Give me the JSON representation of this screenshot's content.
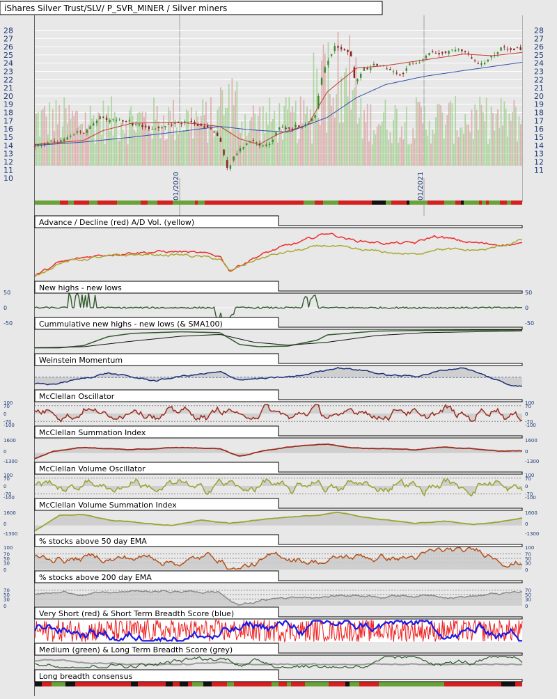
{
  "header": {
    "title": "iShares Silver Trust/SLV/ P_SVR_MINER / Silver miners"
  },
  "colors": {
    "background": "#e8e8e8",
    "grid": "#ffffff",
    "axis_text": "#1d3a78",
    "up_candle": "#3a8a2a",
    "down_candle": "#8a1e1e",
    "sma_short": "#c0392b",
    "sma_long": "#2f4fb0",
    "volume_up": "#9ccf8a",
    "volume_down": "#d9a0a0",
    "ad_line": "#ee2a2a",
    "ad_volume": "#a8a830",
    "new_highs": "#2f5a2a",
    "weinstein": "#1c2f7a",
    "mcclellan": "#9a2b1e",
    "mcclellan_volume": "#9aa330",
    "ema50": "#b4501b",
    "ema200": "#8a8a8a",
    "very_short": "#ee1e1e",
    "short_term": "#1a1ae8",
    "medium": "#2e5a2a",
    "long_term": "#9a9a9a",
    "band_red": "#d42020",
    "band_green": "#6aa23a",
    "band_black": "#111111"
  },
  "chart_data": [
    {
      "type": "candlestick",
      "title": "iShares Silver Trust/SLV/ P_SVR_MINER / Silver miners",
      "y_ticks": [
        28,
        27,
        26,
        25,
        24,
        23,
        22,
        21,
        20,
        19,
        18,
        17,
        16,
        15,
        14,
        13,
        12,
        11,
        10
      ],
      "ylim": [
        10,
        28.8
      ],
      "x_tick_labels": [
        "01/2020",
        "01/2021"
      ],
      "price_anchors": [
        [
          0,
          14.0
        ],
        [
          0.03,
          14.1
        ],
        [
          0.06,
          14.6
        ],
        [
          0.09,
          15.2
        ],
        [
          0.12,
          16.5
        ],
        [
          0.14,
          17.4
        ],
        [
          0.16,
          17.0
        ],
        [
          0.19,
          16.4
        ],
        [
          0.22,
          16.8
        ],
        [
          0.24,
          16.1
        ],
        [
          0.27,
          16.6
        ],
        [
          0.3,
          16.9
        ],
        [
          0.33,
          16.7
        ],
        [
          0.36,
          16.5
        ],
        [
          0.38,
          15.2
        ],
        [
          0.4,
          11.1
        ],
        [
          0.42,
          13.5
        ],
        [
          0.44,
          14.2
        ],
        [
          0.46,
          14.4
        ],
        [
          0.48,
          14.3
        ],
        [
          0.5,
          16.1
        ],
        [
          0.53,
          16.3
        ],
        [
          0.56,
          16.7
        ],
        [
          0.58,
          17.5
        ],
        [
          0.59,
          22.0
        ],
        [
          0.6,
          23.9
        ],
        [
          0.62,
          26.0
        ],
        [
          0.65,
          25.4
        ],
        [
          0.66,
          22.0
        ],
        [
          0.68,
          23.2
        ],
        [
          0.7,
          23.6
        ],
        [
          0.72,
          23.5
        ],
        [
          0.74,
          22.7
        ],
        [
          0.76,
          23.0
        ],
        [
          0.78,
          24.2
        ],
        [
          0.8,
          24.8
        ],
        [
          0.82,
          25.6
        ],
        [
          0.84,
          25.4
        ],
        [
          0.86,
          25.7
        ],
        [
          0.88,
          25.0
        ],
        [
          0.9,
          24.4
        ],
        [
          0.92,
          23.9
        ],
        [
          0.94,
          24.5
        ],
        [
          0.96,
          25.6
        ],
        [
          0.98,
          25.8
        ],
        [
          1.0,
          25.6
        ]
      ],
      "sma_short_anchors": [
        [
          0,
          14.1
        ],
        [
          0.1,
          14.6
        ],
        [
          0.14,
          15.8
        ],
        [
          0.2,
          16.7
        ],
        [
          0.3,
          16.8
        ],
        [
          0.38,
          16.3
        ],
        [
          0.42,
          14.8
        ],
        [
          0.46,
          14.1
        ],
        [
          0.5,
          15.4
        ],
        [
          0.56,
          16.5
        ],
        [
          0.6,
          20.5
        ],
        [
          0.66,
          23.4
        ],
        [
          0.72,
          23.7
        ],
        [
          0.8,
          24.4
        ],
        [
          0.88,
          25.1
        ],
        [
          0.94,
          24.9
        ],
        [
          1.0,
          25.3
        ]
      ],
      "sma_long_anchors": [
        [
          0,
          14.0
        ],
        [
          0.1,
          14.4
        ],
        [
          0.2,
          15.0
        ],
        [
          0.3,
          15.7
        ],
        [
          0.38,
          16.3
        ],
        [
          0.44,
          15.9
        ],
        [
          0.52,
          15.6
        ],
        [
          0.6,
          17.4
        ],
        [
          0.66,
          19.8
        ],
        [
          0.72,
          21.4
        ],
        [
          0.8,
          22.4
        ],
        [
          0.88,
          23.1
        ],
        [
          0.94,
          23.6
        ],
        [
          1.0,
          24.1
        ]
      ]
    },
    {
      "type": "line",
      "title": "Advance / Decline (red) A/D Vol. (yellow)",
      "series": [
        {
          "name": "Advance / Decline",
          "color_key": "ad_line",
          "anchors": [
            [
              0,
              0.1
            ],
            [
              0.05,
              0.35
            ],
            [
              0.12,
              0.48
            ],
            [
              0.2,
              0.55
            ],
            [
              0.3,
              0.56
            ],
            [
              0.38,
              0.48
            ],
            [
              0.4,
              0.2
            ],
            [
              0.45,
              0.45
            ],
            [
              0.5,
              0.62
            ],
            [
              0.55,
              0.75
            ],
            [
              0.6,
              0.92
            ],
            [
              0.65,
              0.78
            ],
            [
              0.72,
              0.72
            ],
            [
              0.78,
              0.72
            ],
            [
              0.82,
              0.85
            ],
            [
              0.88,
              0.75
            ],
            [
              0.93,
              0.7
            ],
            [
              1.0,
              0.7
            ]
          ]
        },
        {
          "name": "A/D Vol.",
          "color_key": "ad_volume",
          "anchors": [
            [
              0,
              0.1
            ],
            [
              0.05,
              0.35
            ],
            [
              0.12,
              0.44
            ],
            [
              0.2,
              0.5
            ],
            [
              0.3,
              0.5
            ],
            [
              0.38,
              0.42
            ],
            [
              0.4,
              0.18
            ],
            [
              0.45,
              0.4
            ],
            [
              0.5,
              0.52
            ],
            [
              0.55,
              0.6
            ],
            [
              0.6,
              0.68
            ],
            [
              0.65,
              0.6
            ],
            [
              0.72,
              0.55
            ],
            [
              0.78,
              0.5
            ],
            [
              0.82,
              0.62
            ],
            [
              0.88,
              0.58
            ],
            [
              0.93,
              0.6
            ],
            [
              1.0,
              0.78
            ]
          ]
        }
      ]
    },
    {
      "type": "line",
      "title": "New highs - new lows",
      "y_ticks": [
        50,
        0,
        -50
      ],
      "series": [
        {
          "name": "New highs - new lows",
          "color_key": "new_highs"
        }
      ]
    },
    {
      "type": "line",
      "title": "Cummulative new highs - new lows (& SMA100)",
      "series": [
        {
          "name": "Cummulative new highs - new lows",
          "color_key": "new_highs",
          "anchors": [
            [
              0,
              0.2
            ],
            [
              0.05,
              0.2
            ],
            [
              0.1,
              0.3
            ],
            [
              0.15,
              0.7
            ],
            [
              0.2,
              0.85
            ],
            [
              0.3,
              0.92
            ],
            [
              0.38,
              0.88
            ],
            [
              0.42,
              0.35
            ],
            [
              0.46,
              0.25
            ],
            [
              0.52,
              0.28
            ],
            [
              0.58,
              0.55
            ],
            [
              0.6,
              0.78
            ],
            [
              0.7,
              0.95
            ],
            [
              0.8,
              0.98
            ],
            [
              1.0,
              1.0
            ]
          ]
        },
        {
          "name": "SMA100",
          "color_key": "band_black",
          "anchors": [
            [
              0,
              0.2
            ],
            [
              0.1,
              0.25
            ],
            [
              0.2,
              0.5
            ],
            [
              0.3,
              0.72
            ],
            [
              0.38,
              0.8
            ],
            [
              0.45,
              0.45
            ],
            [
              0.52,
              0.32
            ],
            [
              0.6,
              0.45
            ],
            [
              0.7,
              0.75
            ],
            [
              0.8,
              0.88
            ],
            [
              1.0,
              0.96
            ]
          ]
        }
      ]
    },
    {
      "type": "line",
      "title": "Weinstein Momentum",
      "series": [
        {
          "name": "Weinstein Momentum",
          "color_key": "weinstein",
          "anchors": [
            [
              0.04,
              0.2
            ],
            [
              0.1,
              0.45
            ],
            [
              0.15,
              0.7
            ],
            [
              0.2,
              0.5
            ],
            [
              0.25,
              0.35
            ],
            [
              0.3,
              0.55
            ],
            [
              0.38,
              0.72
            ],
            [
              0.42,
              0.4
            ],
            [
              0.48,
              0.45
            ],
            [
              0.54,
              0.55
            ],
            [
              0.58,
              0.75
            ],
            [
              0.62,
              0.95
            ],
            [
              0.68,
              0.8
            ],
            [
              0.72,
              0.6
            ],
            [
              0.78,
              0.55
            ],
            [
              0.84,
              0.82
            ],
            [
              0.88,
              0.95
            ],
            [
              0.92,
              0.6
            ],
            [
              0.97,
              0.2
            ],
            [
              1.0,
              0.1
            ]
          ]
        }
      ]
    },
    {
      "type": "line",
      "title": "McClellan Oscillator",
      "y_ticks": [
        100,
        70,
        0,
        -70,
        -100
      ],
      "series": [
        {
          "name": "McClellan Oscillator",
          "color_key": "mcclellan"
        }
      ]
    },
    {
      "type": "line",
      "title": "McClellan Summation Index",
      "y_ticks": [
        1600,
        0,
        -1300
      ],
      "series": [
        {
          "name": "McClellan Summation Index",
          "color_key": "mcclellan",
          "anchors": [
            [
              0,
              0.1
            ],
            [
              0.04,
              0.45
            ],
            [
              0.1,
              0.6
            ],
            [
              0.2,
              0.5
            ],
            [
              0.3,
              0.6
            ],
            [
              0.38,
              0.55
            ],
            [
              0.42,
              0.2
            ],
            [
              0.48,
              0.5
            ],
            [
              0.55,
              0.7
            ],
            [
              0.6,
              0.75
            ],
            [
              0.66,
              0.58
            ],
            [
              0.72,
              0.55
            ],
            [
              0.78,
              0.5
            ],
            [
              0.84,
              0.62
            ],
            [
              0.9,
              0.55
            ],
            [
              0.95,
              0.45
            ],
            [
              1.0,
              0.45
            ]
          ]
        }
      ]
    },
    {
      "type": "line",
      "title": "McClellan Volume Oscillator",
      "y_ticks": [
        100,
        70,
        0,
        -70,
        -100
      ],
      "series": [
        {
          "name": "McClellan Volume Oscillator",
          "color_key": "mcclellan_volume"
        }
      ]
    },
    {
      "type": "line",
      "title": "McClellan Volume Summation Index",
      "y_ticks": [
        1600,
        0,
        -1300
      ],
      "series": [
        {
          "name": "McClellan Volume Summation Index",
          "color_key": "mcclellan_volume",
          "anchors": [
            [
              0,
              0.1
            ],
            [
              0.05,
              0.8
            ],
            [
              0.1,
              0.85
            ],
            [
              0.15,
              0.6
            ],
            [
              0.2,
              0.5
            ],
            [
              0.28,
              0.35
            ],
            [
              0.34,
              0.6
            ],
            [
              0.4,
              0.45
            ],
            [
              0.46,
              0.6
            ],
            [
              0.52,
              0.72
            ],
            [
              0.58,
              0.8
            ],
            [
              0.62,
              0.95
            ],
            [
              0.66,
              0.78
            ],
            [
              0.72,
              0.6
            ],
            [
              0.78,
              0.45
            ],
            [
              0.84,
              0.55
            ],
            [
              0.9,
              0.4
            ],
            [
              0.95,
              0.5
            ],
            [
              1.0,
              0.68
            ]
          ]
        }
      ]
    },
    {
      "type": "line",
      "title": "% stocks above 50 day EMA",
      "y_ticks": [
        100,
        70,
        50,
        30,
        0
      ],
      "series": [
        {
          "name": "% stocks above 50 day EMA",
          "color_key": "ema50"
        }
      ]
    },
    {
      "type": "line",
      "title": "% stocks above 200 day EMA",
      "y_ticks": [
        70,
        50,
        30,
        0
      ],
      "series": [
        {
          "name": "% stocks above 200 day EMA",
          "color_key": "ema200"
        }
      ]
    },
    {
      "type": "line",
      "title": "Very Short (red) & Short Term Breadth Score (blue)",
      "series": [
        {
          "name": "Very Short",
          "color_key": "very_short"
        },
        {
          "name": "Short Term Breadth Score",
          "color_key": "short_term"
        }
      ]
    },
    {
      "type": "line",
      "title": "Medium (green) & Long Term Breadth Score (grey)",
      "series": [
        {
          "name": "Medium",
          "color_key": "medium"
        },
        {
          "name": "Long Term Breadth Score",
          "color_key": "long_term"
        }
      ]
    },
    {
      "type": "heatmap",
      "title": "Long breadth consensus",
      "categories": [
        "red",
        "green",
        "black"
      ]
    }
  ]
}
